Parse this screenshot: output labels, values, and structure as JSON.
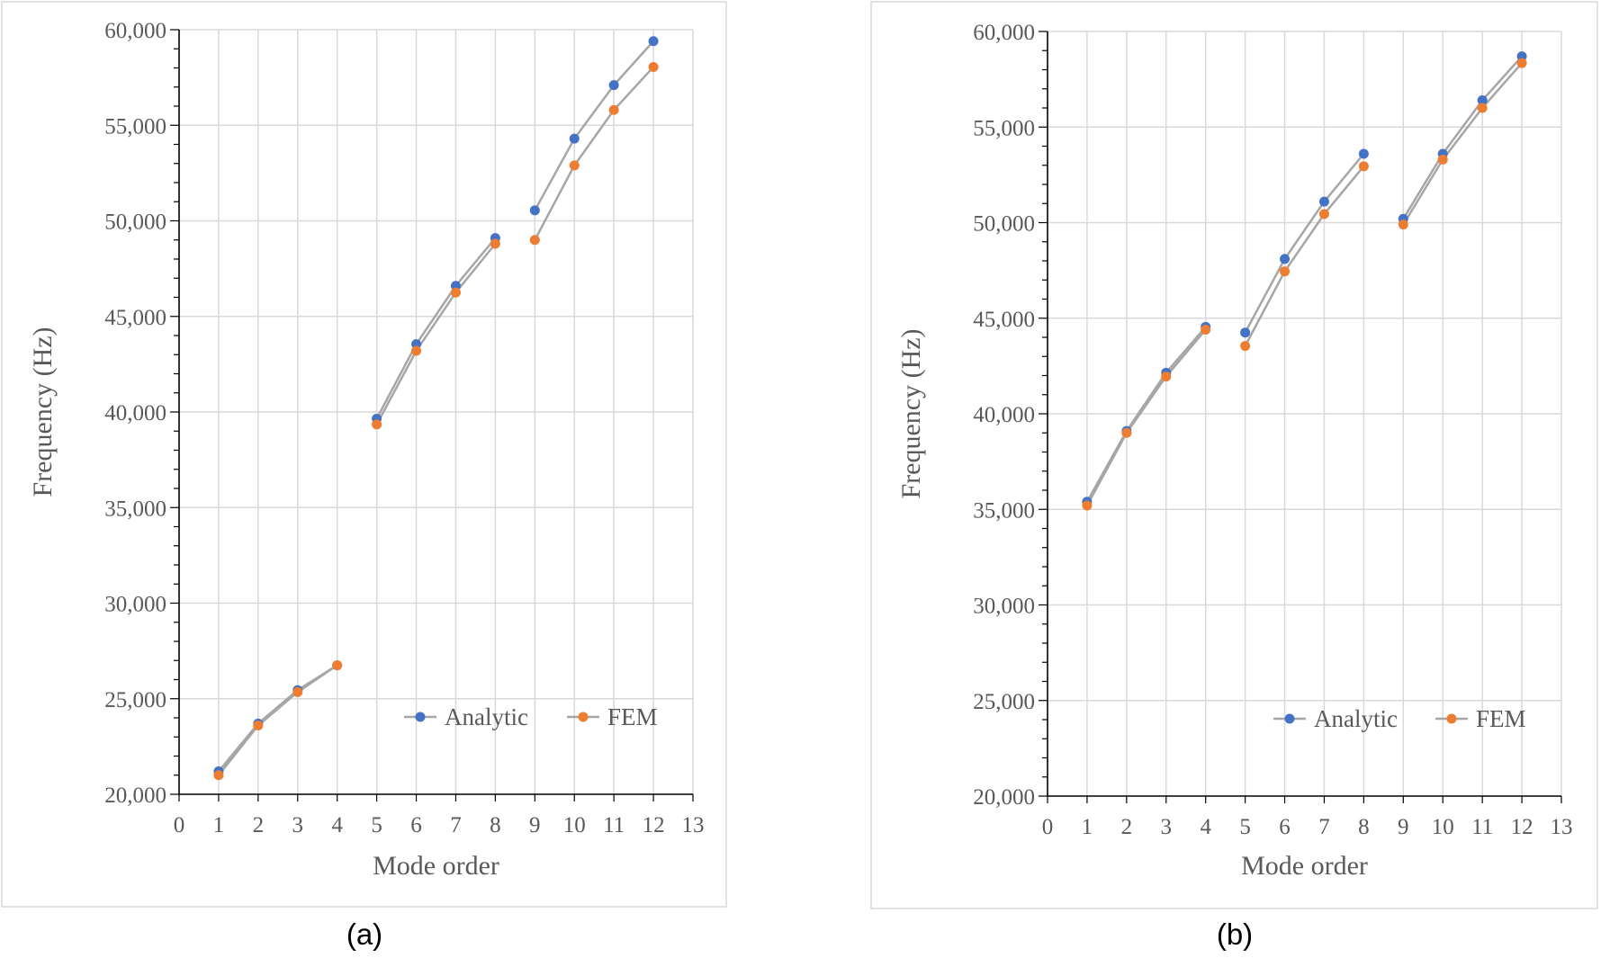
{
  "chart_data": [
    {
      "type": "line",
      "caption": "(a)",
      "xlabel": "Mode order",
      "ylabel": "Frequency (Hz)",
      "xlim": [
        0,
        13
      ],
      "ylim": [
        20000,
        60000
      ],
      "x_ticks": [
        "0",
        "1",
        "2",
        "3",
        "4",
        "5",
        "6",
        "7",
        "8",
        "9",
        "10",
        "11",
        "12",
        "13"
      ],
      "y_ticks": [
        "20,000",
        "25,000",
        "30,000",
        "35,000",
        "40,000",
        "45,000",
        "50,000",
        "55,000",
        "60,000"
      ],
      "grid": true,
      "legend": "bottom-right",
      "segments": [
        [
          1,
          4
        ],
        [
          5,
          8
        ],
        [
          9,
          12
        ]
      ],
      "x": [
        1,
        2,
        3,
        4,
        5,
        6,
        7,
        8,
        9,
        10,
        11,
        12
      ],
      "series": [
        {
          "name": "Analytic",
          "color": "#4472C4",
          "values": [
            21200,
            23700,
            25450,
            26750,
            39650,
            43550,
            46600,
            49100,
            50550,
            54300,
            57100,
            59400
          ]
        },
        {
          "name": "FEM",
          "color": "#ED7D31",
          "values": [
            21000,
            23600,
            25350,
            26750,
            39350,
            43200,
            46250,
            48800,
            49000,
            52900,
            55800,
            58050
          ]
        }
      ]
    },
    {
      "type": "line",
      "caption": "(b)",
      "xlabel": "Mode order",
      "ylabel": "Frequency (Hz)",
      "xlim": [
        0,
        13
      ],
      "ylim": [
        20000,
        60000
      ],
      "x_ticks": [
        "0",
        "1",
        "2",
        "3",
        "4",
        "5",
        "6",
        "7",
        "8",
        "9",
        "10",
        "11",
        "12",
        "13"
      ],
      "y_ticks": [
        "20,000",
        "25,000",
        "30,000",
        "35,000",
        "40,000",
        "45,000",
        "50,000",
        "55,000",
        "60,000"
      ],
      "grid": true,
      "legend": "bottom-right",
      "segments": [
        [
          1,
          4
        ],
        [
          5,
          8
        ],
        [
          9,
          12
        ]
      ],
      "x": [
        1,
        2,
        3,
        4,
        5,
        6,
        7,
        8,
        9,
        10,
        11,
        12
      ],
      "series": [
        {
          "name": "Analytic",
          "color": "#4472C4",
          "values": [
            35400,
            39100,
            42150,
            44550,
            44250,
            48100,
            51100,
            53600,
            50200,
            53600,
            56400,
            58700
          ]
        },
        {
          "name": "FEM",
          "color": "#ED7D31",
          "values": [
            35200,
            39000,
            41950,
            44400,
            43550,
            47450,
            50450,
            52950,
            49900,
            53300,
            56000,
            58350
          ]
        }
      ]
    }
  ]
}
